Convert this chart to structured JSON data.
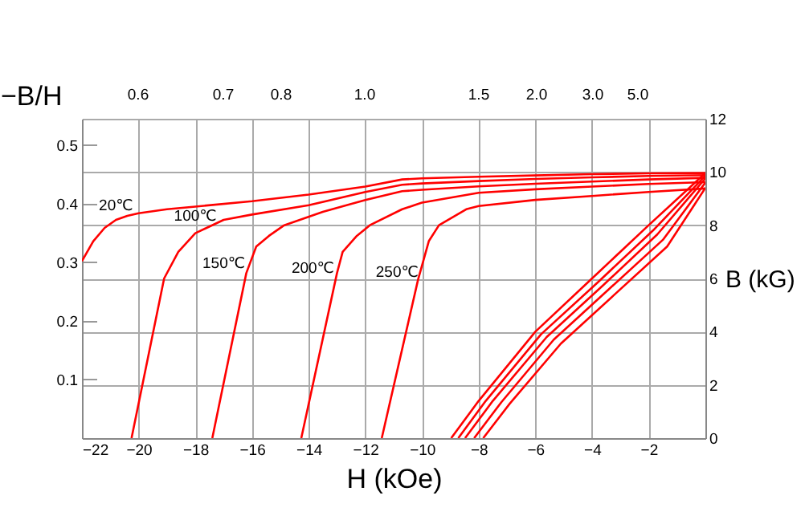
{
  "chart_data": {
    "type": "line",
    "xlabel": "H (kOe)",
    "ylabel": "B (kG)",
    "y2label": "−B/H",
    "xlim": [
      -22,
      0
    ],
    "xticks": [
      -22,
      -20,
      -18,
      -16,
      -14,
      -12,
      -10,
      -8,
      -6,
      -4,
      -2
    ],
    "ylim": [
      0,
      12
    ],
    "yticks": [
      0,
      2,
      4,
      6,
      8,
      10,
      12
    ],
    "y2lim": [
      0,
      0.545
    ],
    "y2ticks": [
      0.1,
      0.2,
      0.3,
      0.4,
      0.5
    ],
    "grid": true,
    "line_style": "solid",
    "series": [
      {
        "name": "20℃",
        "color": "#ff0000",
        "x": [
          -22,
          -21.6,
          -21.2,
          -20.8,
          -20.4,
          -20,
          -19,
          -18,
          -16,
          -14,
          -12,
          -10.7,
          -10,
          -8,
          -6,
          -4,
          -2,
          0
        ],
        "values": [
          6.65,
          7.4,
          7.9,
          8.2,
          8.35,
          8.45,
          8.6,
          8.7,
          8.9,
          9.15,
          9.45,
          9.72,
          9.76,
          9.82,
          9.87,
          9.92,
          9.95,
          9.96
        ]
      },
      {
        "name": "100℃",
        "color": "#ff0000",
        "x": [
          -20.25,
          -19.1,
          -18.6,
          -18,
          -17,
          -16,
          -14,
          -12,
          -10.7,
          -10,
          -8,
          -6,
          -4,
          -2,
          0
        ],
        "values": [
          0,
          6.0,
          7.0,
          7.7,
          8.2,
          8.4,
          8.75,
          9.25,
          9.52,
          9.57,
          9.66,
          9.74,
          9.8,
          9.85,
          9.88
        ]
      },
      {
        "name": "150℃",
        "color": "#ff0000",
        "x": [
          -17.4,
          -16.2,
          -15.85,
          -15.4,
          -14.86,
          -13.5,
          -12,
          -10.7,
          -10,
          -8,
          -6,
          -4,
          -2,
          0
        ],
        "values": [
          0,
          6.2,
          7.2,
          7.6,
          8.0,
          8.5,
          8.95,
          9.28,
          9.33,
          9.46,
          9.56,
          9.64,
          9.72,
          9.78
        ]
      },
      {
        "name": "200℃",
        "color": "#ff0000",
        "x": [
          -14.26,
          -13.0,
          -12.8,
          -12.3,
          -11.84,
          -10.7,
          -10,
          -8,
          -6,
          -4,
          -2,
          0
        ],
        "values": [
          0,
          6.2,
          7.0,
          7.6,
          8.0,
          8.6,
          8.85,
          9.22,
          9.35,
          9.45,
          9.55,
          9.62
        ]
      },
      {
        "name": "250℃",
        "color": "#ff0000",
        "x": [
          -11.42,
          -10.14,
          -9.76,
          -9.4,
          -8.44,
          -8,
          -6,
          -4,
          -2,
          0
        ],
        "values": [
          0,
          5.95,
          7.4,
          8.0,
          8.6,
          8.72,
          8.95,
          9.1,
          9.25,
          9.38
        ]
      },
      {
        "color": "#ff0000",
        "x": [
          -8.97,
          -8,
          -6,
          -4,
          -2,
          0
        ],
        "values": [
          0,
          1.4,
          4.0,
          6.0,
          8.0,
          9.96
        ]
      },
      {
        "color": "#ff0000",
        "x": [
          -8.72,
          -7.75,
          -5.8,
          -3.8,
          -1.85,
          0
        ],
        "values": [
          0,
          1.4,
          3.9,
          5.85,
          7.8,
          9.86
        ]
      },
      {
        "color": "#ff0000",
        "x": [
          -8.48,
          -7.5,
          -5.6,
          -3.6,
          -1.7,
          0
        ],
        "values": [
          0,
          1.4,
          3.8,
          5.75,
          7.65,
          9.76
        ]
      },
      {
        "color": "#ff0000",
        "x": [
          -8.16,
          -7.2,
          -5.35,
          -3.4,
          -1.5,
          0
        ],
        "values": [
          0,
          1.35,
          3.7,
          5.6,
          7.45,
          9.6
        ]
      },
      {
        "color": "#ff0000",
        "x": [
          -7.84,
          -6.9,
          -5.1,
          -3.2,
          -1.35,
          0
        ],
        "values": [
          0,
          1.3,
          3.55,
          5.4,
          7.2,
          9.4
        ]
      }
    ],
    "annotations": [
      "0.6",
      "0.7",
      "0.8",
      "1.0",
      "1.5",
      "2.0",
      "3.0",
      "5.0"
    ]
  }
}
